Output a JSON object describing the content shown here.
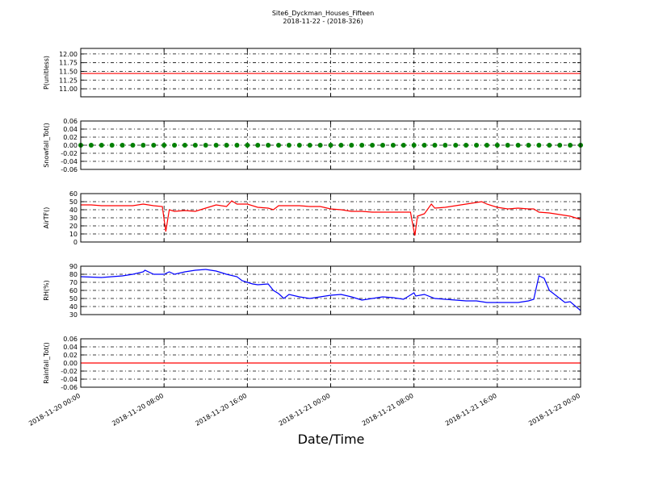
{
  "chart_data": [
    {
      "type": "line",
      "title": "Site6_Dyckman_Houses_Fifteen",
      "subtitle": "2018-11-22 - (2018-326)",
      "ylabel": "P(unitless)",
      "color": "#ff0000",
      "x": [
        "2018-11-20 00:00",
        "2018-11-20 04:00",
        "2018-11-20 08:00",
        "2018-11-20 12:00",
        "2018-11-20 16:00",
        "2018-11-20 20:00",
        "2018-11-21 00:00",
        "2018-11-21 04:00",
        "2018-11-21 08:00",
        "2018-11-21 12:00",
        "2018-11-21 16:00",
        "2018-11-21 20:00",
        "2018-11-22 00:00"
      ],
      "values": [
        11.44,
        11.44,
        11.44,
        11.44,
        11.44,
        11.44,
        11.44,
        11.44,
        11.44,
        11.44,
        11.44,
        11.44,
        11.44
      ],
      "xlim": [
        "2018-11-20 00:00",
        "2018-11-22 00:00"
      ],
      "ylim": [
        10.77,
        12.16
      ],
      "yticks": [
        {
          "value": 11,
          "label": "11.00"
        },
        {
          "value": 11.25,
          "label": "11.25"
        },
        {
          "value": 11.5,
          "label": "11.50"
        },
        {
          "value": 11.75,
          "label": "11.75"
        },
        {
          "value": 12,
          "label": "12.00"
        }
      ],
      "grid": true
    },
    {
      "type": "scatter",
      "ylabel": "Snowfall_Tot()",
      "color": "#008000",
      "x": [
        "2018-11-20 00:00",
        "2018-11-20 01:00",
        "2018-11-20 02:00",
        "2018-11-20 03:00",
        "2018-11-20 04:00",
        "2018-11-20 05:00",
        "2018-11-20 06:00",
        "2018-11-20 07:00",
        "2018-11-20 08:00",
        "2018-11-20 09:00",
        "2018-11-20 10:00",
        "2018-11-20 11:00",
        "2018-11-20 12:00",
        "2018-11-20 13:00",
        "2018-11-20 14:00",
        "2018-11-20 15:00",
        "2018-11-20 16:00",
        "2018-11-20 17:00",
        "2018-11-20 18:00",
        "2018-11-20 19:00",
        "2018-11-20 20:00",
        "2018-11-20 21:00",
        "2018-11-20 22:00",
        "2018-11-20 23:00",
        "2018-11-21 00:00",
        "2018-11-21 01:00",
        "2018-11-21 02:00",
        "2018-11-21 03:00",
        "2018-11-21 04:00",
        "2018-11-21 05:00",
        "2018-11-21 06:00",
        "2018-11-21 07:00",
        "2018-11-21 08:00",
        "2018-11-21 09:00",
        "2018-11-21 10:00",
        "2018-11-21 11:00",
        "2018-11-21 12:00",
        "2018-11-21 13:00",
        "2018-11-21 14:00",
        "2018-11-21 15:00",
        "2018-11-21 16:00",
        "2018-11-21 17:00",
        "2018-11-21 18:00",
        "2018-11-21 19:00",
        "2018-11-21 20:00",
        "2018-11-21 21:00",
        "2018-11-21 22:00",
        "2018-11-21 23:00",
        "2018-11-22 00:00"
      ],
      "values": [
        0,
        0,
        0,
        0,
        0,
        0,
        0,
        0,
        0,
        0,
        0,
        0,
        0,
        0,
        0,
        0,
        0,
        0,
        0,
        0,
        0,
        0,
        0,
        0,
        0,
        0,
        0,
        0,
        0,
        0,
        0,
        0,
        0,
        0,
        0,
        0,
        0,
        0,
        0,
        0,
        0,
        0,
        0,
        0,
        0,
        0,
        0,
        0,
        0
      ],
      "xlim": [
        "2018-11-20 00:00",
        "2018-11-22 00:00"
      ],
      "ylim": [
        -0.06,
        0.06
      ],
      "yticks": [
        -0.06,
        -0.04,
        -0.02,
        {
          "value": 0,
          "label": "0.00"
        },
        0.02,
        0.04,
        0.06
      ],
      "grid": true
    },
    {
      "type": "line",
      "ylabel": "AirTF()",
      "color": "#ff0000",
      "x": [
        "2018-11-20 00:00",
        "2018-11-20 01:00",
        "2018-11-20 02:00",
        "2018-11-20 03:00",
        "2018-11-20 04:00",
        "2018-11-20 05:00",
        "2018-11-20 06:00",
        "2018-11-20 07:00",
        "2018-11-20 07:50",
        "2018-11-20 08:10",
        "2018-11-20 08:30",
        "2018-11-20 09:00",
        "2018-11-20 10:00",
        "2018-11-20 11:00",
        "2018-11-20 12:00",
        "2018-11-20 13:00",
        "2018-11-20 14:00",
        "2018-11-20 14:30",
        "2018-11-20 15:00",
        "2018-11-20 16:00",
        "2018-11-20 17:00",
        "2018-11-20 18:00",
        "2018-11-20 18:30",
        "2018-11-20 19:00",
        "2018-11-20 20:00",
        "2018-11-20 21:00",
        "2018-11-20 22:00",
        "2018-11-20 23:00",
        "2018-11-21 00:00",
        "2018-11-21 01:00",
        "2018-11-21 02:00",
        "2018-11-21 03:00",
        "2018-11-21 04:00",
        "2018-11-21 05:00",
        "2018-11-21 06:00",
        "2018-11-21 07:00",
        "2018-11-21 07:40",
        "2018-11-21 07:50",
        "2018-11-21 08:05",
        "2018-11-21 08:20",
        "2018-11-21 09:00",
        "2018-11-21 09:40",
        "2018-11-21 10:00",
        "2018-11-21 11:00",
        "2018-11-21 12:00",
        "2018-11-21 13:00",
        "2018-11-21 14:00",
        "2018-11-21 14:30",
        "2018-11-21 15:00",
        "2018-11-21 16:00",
        "2018-11-21 17:00",
        "2018-11-21 18:00",
        "2018-11-21 19:00",
        "2018-11-21 19:30",
        "2018-11-21 20:00",
        "2018-11-21 21:00",
        "2018-11-21 22:00",
        "2018-11-21 23:00",
        "2018-11-22 00:00"
      ],
      "values": [
        46,
        46,
        45,
        45,
        45,
        45,
        47,
        45,
        44,
        13,
        40,
        38,
        39,
        38,
        42,
        46,
        44,
        51,
        47,
        47,
        43,
        42,
        40,
        45,
        45,
        45,
        44,
        44,
        41,
        40,
        38,
        38,
        37,
        37,
        37,
        37,
        37,
        25,
        8,
        32,
        35,
        47,
        42,
        43,
        45,
        47,
        49,
        50,
        47,
        43,
        41,
        42,
        41,
        41,
        37,
        36,
        34,
        32,
        28
      ],
      "xlim": [
        "2018-11-20 00:00",
        "2018-11-22 00:00"
      ],
      "ylim": [
        0,
        60
      ],
      "yticks": [
        0,
        10,
        20,
        30,
        40,
        50,
        60
      ],
      "grid": true
    },
    {
      "type": "line",
      "ylabel": "RH(%)",
      "color": "#0000ff",
      "x": [
        "2018-11-20 00:00",
        "2018-11-20 02:00",
        "2018-11-20 03:00",
        "2018-11-20 04:00",
        "2018-11-20 05:00",
        "2018-11-20 06:00",
        "2018-11-20 06:10",
        "2018-11-20 07:00",
        "2018-11-20 08:00",
        "2018-11-20 08:30",
        "2018-11-20 09:00",
        "2018-11-20 10:00",
        "2018-11-20 11:00",
        "2018-11-20 12:00",
        "2018-11-20 13:00",
        "2018-11-20 14:00",
        "2018-11-20 15:00",
        "2018-11-20 15:30",
        "2018-11-20 16:00",
        "2018-11-20 16:30",
        "2018-11-20 17:00",
        "2018-11-20 18:00",
        "2018-11-20 18:30",
        "2018-11-20 19:00",
        "2018-11-20 19:30",
        "2018-11-20 20:00",
        "2018-11-20 21:00",
        "2018-11-20 22:00",
        "2018-11-20 23:00",
        "2018-11-21 00:00",
        "2018-11-21 01:00",
        "2018-11-21 02:00",
        "2018-11-21 03:00",
        "2018-11-21 04:00",
        "2018-11-21 05:00",
        "2018-11-21 06:00",
        "2018-11-21 07:00",
        "2018-11-21 08:00",
        "2018-11-21 08:10",
        "2018-11-21 09:00",
        "2018-11-21 10:00",
        "2018-11-21 11:00",
        "2018-11-21 12:00",
        "2018-11-21 13:00",
        "2018-11-21 14:00",
        "2018-11-21 15:00",
        "2018-11-21 16:00",
        "2018-11-21 17:00",
        "2018-11-21 18:00",
        "2018-11-21 19:00",
        "2018-11-21 19:30",
        "2018-11-21 20:00",
        "2018-11-21 20:30",
        "2018-11-21 21:00",
        "2018-11-21 22:00",
        "2018-11-21 22:30",
        "2018-11-21 23:00",
        "2018-11-22 00:00"
      ],
      "values": [
        77,
        76,
        77,
        78,
        80,
        83,
        85,
        80,
        80,
        83,
        80,
        83,
        85,
        86,
        84,
        80,
        77,
        72,
        70,
        68,
        67,
        68,
        60,
        56,
        50,
        55,
        52,
        50,
        52,
        54,
        55,
        52,
        48,
        50,
        52,
        51,
        49,
        57,
        53,
        55,
        50,
        49,
        48,
        47,
        47,
        45,
        45,
        45,
        45,
        47,
        49,
        78,
        75,
        60,
        50,
        45,
        46,
        35
      ],
      "xlim": [
        "2018-11-20 00:00",
        "2018-11-22 00:00"
      ],
      "ylim": [
        30,
        90
      ],
      "yticks": [
        30,
        40,
        50,
        60,
        70,
        80,
        90
      ],
      "grid": true
    },
    {
      "type": "line",
      "ylabel": "Rainfall_Tot()",
      "xlabel": "Date/Time",
      "color": "#ff0000",
      "x": [
        "2018-11-20 00:00",
        "2018-11-20 04:00",
        "2018-11-20 08:00",
        "2018-11-20 12:00",
        "2018-11-20 16:00",
        "2018-11-20 20:00",
        "2018-11-21 00:00",
        "2018-11-21 04:00",
        "2018-11-21 08:00",
        "2018-11-21 12:00",
        "2018-11-21 16:00",
        "2018-11-21 20:00",
        "2018-11-22 00:00"
      ],
      "values": [
        0,
        0,
        0,
        0,
        0,
        0,
        0,
        0,
        0,
        0,
        0,
        0,
        0
      ],
      "xlim": [
        "2018-11-20 00:00",
        "2018-11-22 00:00"
      ],
      "ylim": [
        -0.06,
        0.06
      ],
      "xticks": [
        "2018-11-20 00:00",
        "2018-11-20 08:00",
        "2018-11-20 16:00",
        "2018-11-21 00:00",
        "2018-11-21 08:00",
        "2018-11-21 16:00",
        "2018-11-22 00:00"
      ],
      "yticks": [
        -0.06,
        -0.04,
        -0.02,
        {
          "value": 0,
          "label": "0.00"
        },
        0.02,
        0.04,
        0.06
      ],
      "grid": true
    }
  ]
}
